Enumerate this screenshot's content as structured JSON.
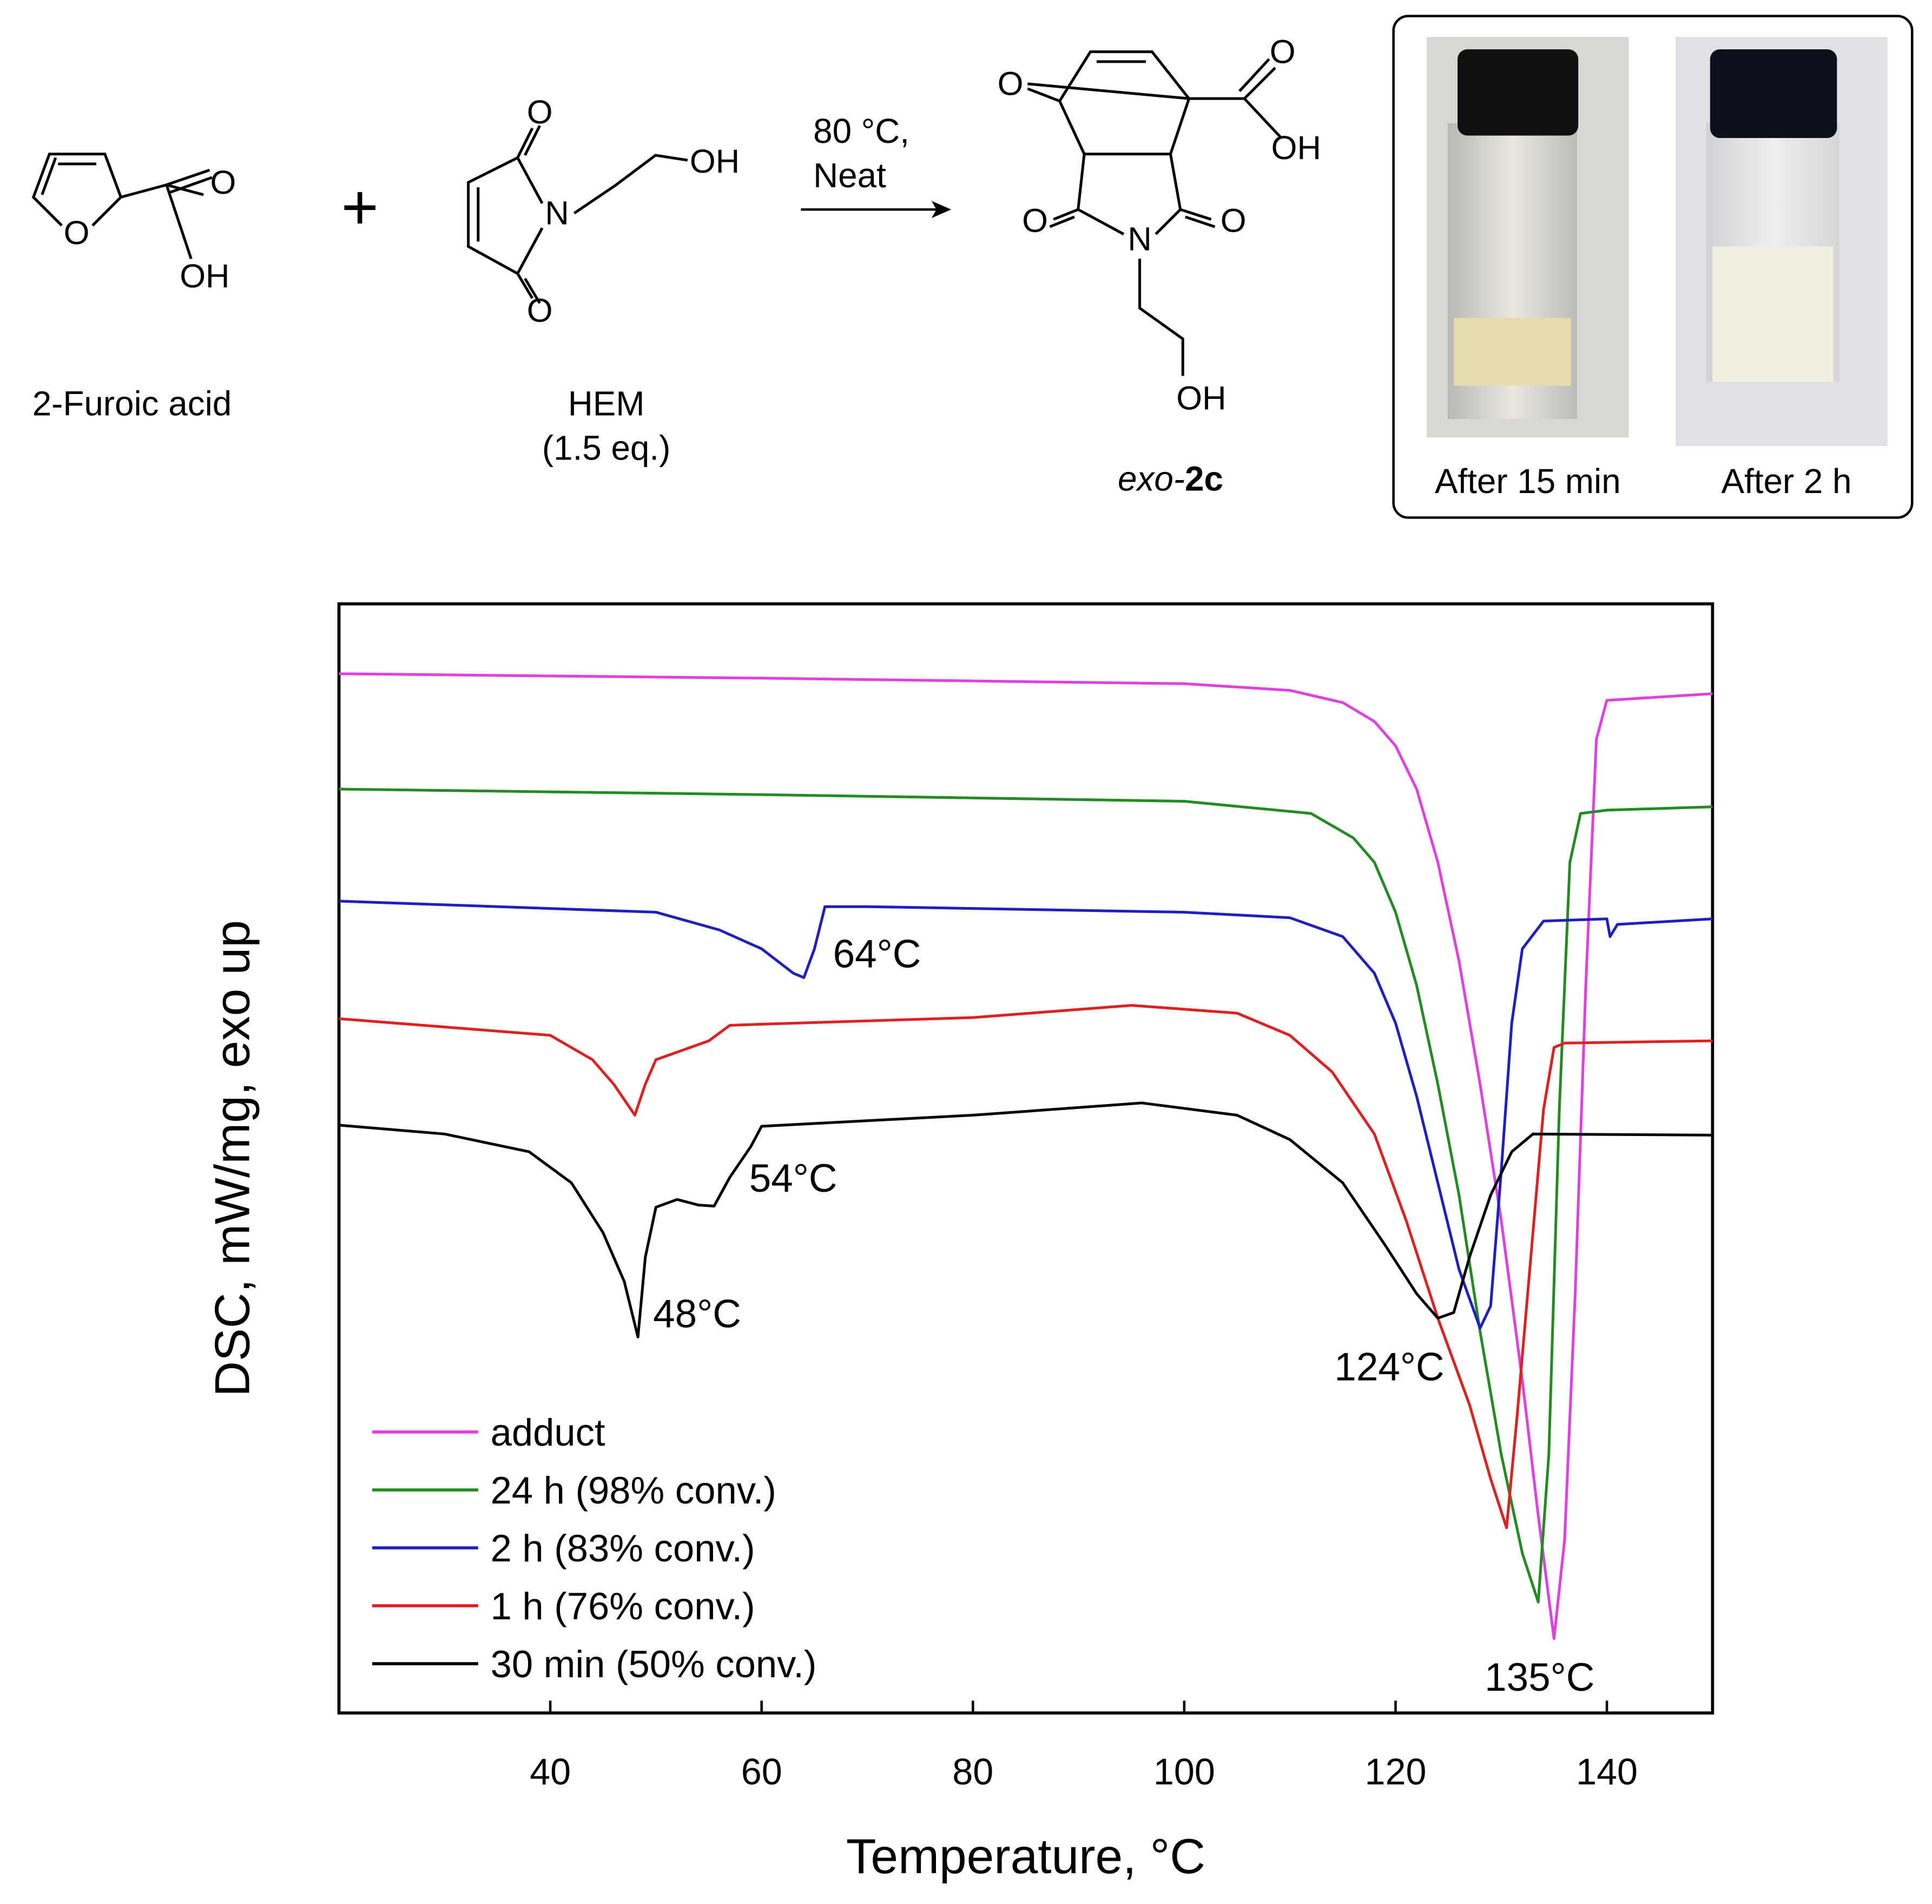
{
  "scheme": {
    "reactant1": {
      "name": "2-Furoic acid",
      "atoms": [
        "O",
        "O",
        "OH"
      ]
    },
    "plus": "+",
    "reactant2": {
      "name": "HEM",
      "note": "(1.5 eq.)",
      "atoms": [
        "O",
        "N",
        "OH",
        "O"
      ]
    },
    "conditions": [
      "80 °C,",
      "Neat"
    ],
    "product": {
      "name_italic": "exo-",
      "name_bold": "2c",
      "atoms": [
        "O",
        "O",
        "OH",
        "O",
        "N",
        "O",
        "OH"
      ]
    }
  },
  "photos": [
    {
      "caption": "After 15 min"
    },
    {
      "caption": "After 2 h"
    }
  ],
  "chart_data": {
    "type": "line",
    "xlabel": "Temperature, °C",
    "ylabel": "DSC, mW/mg, exo up",
    "xlim": [
      20,
      150
    ],
    "xticks": [
      40,
      60,
      80,
      100,
      120,
      140
    ],
    "ylim": [
      0,
      100
    ],
    "legend": "lower left",
    "series": [
      {
        "name": "adduct",
        "color": "#e040e0",
        "x": [
          20,
          60,
          100,
          110,
          115,
          118,
          120,
          122,
          124,
          126,
          128,
          130,
          132,
          133.5,
          135,
          136,
          137,
          138,
          139,
          140,
          150
        ],
        "values": [
          93.7,
          93.3,
          92.8,
          92.2,
          91.1,
          89.4,
          87.2,
          83.3,
          76.7,
          67.8,
          56.7,
          44.4,
          30,
          17.8,
          6.7,
          15.6,
          37.8,
          65.6,
          87.8,
          91.3,
          91.9
        ]
      },
      {
        "name": "24 h (98% conv.)",
        "color": "#228b22",
        "x": [
          20,
          60,
          100,
          112,
          116,
          118,
          120,
          122,
          124,
          126,
          128,
          130,
          132,
          133.5,
          134.5,
          135.5,
          136.5,
          137.5,
          140,
          150
        ],
        "values": [
          83.3,
          82.8,
          82.2,
          81.1,
          78.9,
          76.7,
          72.2,
          65.6,
          56.7,
          46.7,
          34.4,
          23.3,
          14.4,
          10,
          23.3,
          54.4,
          76.7,
          81.1,
          81.4,
          81.7
        ]
      },
      {
        "name": "2 h (83% conv.)",
        "color": "#1f1fbf",
        "x": [
          20,
          50,
          56,
          60,
          63,
          64,
          65,
          66,
          70,
          100,
          110,
          115,
          118,
          120,
          122,
          124,
          126,
          128,
          129,
          130,
          131,
          132,
          134,
          140,
          140.3,
          141,
          150
        ],
        "values": [
          73.2,
          72.2,
          70.6,
          68.9,
          66.7,
          66.3,
          68.9,
          72.7,
          72.7,
          72.2,
          71.7,
          70,
          66.7,
          62.2,
          55.6,
          47.8,
          40,
          34.7,
          36.7,
          48.9,
          62.2,
          68.9,
          71.4,
          71.6,
          70,
          71.1,
          71.6
        ]
      },
      {
        "name": "1 h (76% conv.)",
        "color": "#dd2020",
        "x": [
          20,
          40,
          44,
          46,
          48,
          49,
          50,
          55,
          57,
          60,
          80,
          95,
          105,
          110,
          114,
          118,
          121,
          124,
          127,
          129,
          130.5,
          131.5,
          133,
          134,
          135,
          136,
          150
        ],
        "values": [
          62.6,
          61.1,
          58.9,
          56.7,
          53.9,
          56.7,
          58.9,
          60.6,
          62,
          62.1,
          62.7,
          63.8,
          63.1,
          61.1,
          57.8,
          52.2,
          44.4,
          35.6,
          27.8,
          21.1,
          16.7,
          26.7,
          43.3,
          54.4,
          60,
          60.4,
          60.6
        ]
      },
      {
        "name": "30 min (50% conv.)",
        "color": "#000000",
        "x": [
          20,
          30,
          38,
          42,
          45,
          47,
          48.3,
          49,
          50,
          52,
          54,
          55.5,
          57,
          59,
          60,
          80,
          96,
          105,
          110,
          115,
          119,
          122,
          124,
          125.5,
          127,
          129,
          131,
          133,
          150
        ],
        "values": [
          53,
          52.2,
          50.6,
          47.8,
          43.3,
          38.9,
          33.9,
          41.1,
          45.6,
          46.3,
          45.8,
          45.7,
          48.3,
          51.1,
          52.9,
          53.9,
          55,
          53.9,
          51.7,
          47.8,
          42.2,
          37.8,
          35.6,
          36.1,
          41.1,
          46.7,
          50.6,
          52.2,
          52.1
        ]
      }
    ],
    "annotations": [
      "64°C",
      "54°C",
      "48°C",
      "124°C",
      "135°C"
    ]
  }
}
